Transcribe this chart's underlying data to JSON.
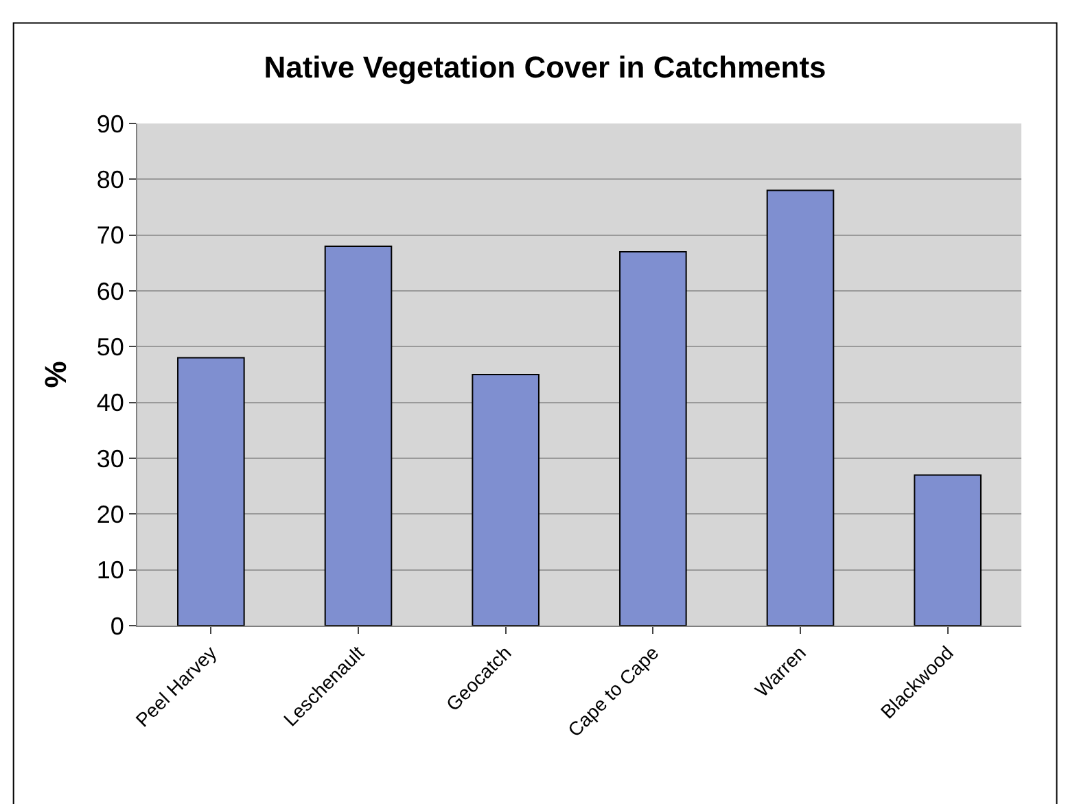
{
  "chart_data": {
    "type": "bar",
    "title": "Native Vegetation Cover in Catchments",
    "ylabel": "%",
    "categories": [
      "Peel Harvey",
      "Leschenault",
      "Geocatch",
      "Cape to Cape",
      "Warren",
      "Blackwood"
    ],
    "values": [
      48,
      68,
      45,
      67,
      78,
      27
    ],
    "color": "#7f8fd0",
    "ylim": [
      0,
      90
    ],
    "yticks": [
      0,
      10,
      20,
      30,
      40,
      50,
      60,
      70,
      80,
      90
    ],
    "grid": "y",
    "legend": false
  }
}
